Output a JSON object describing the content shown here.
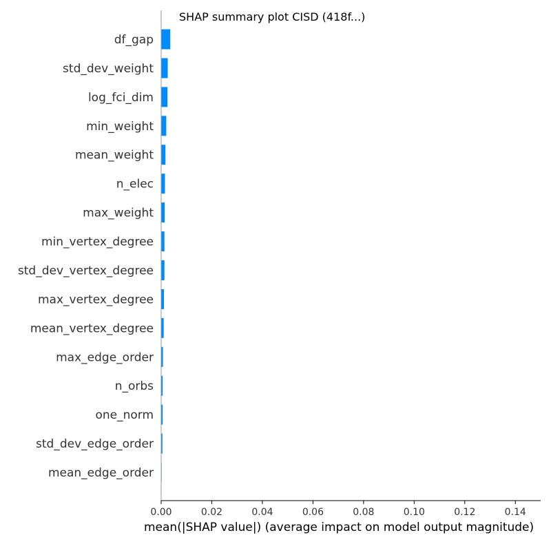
{
  "chart_data": {
    "type": "bar",
    "orientation": "horizontal",
    "title": "SHAP summary plot CISD (418f...)",
    "xlabel": "mean(|SHAP value|) (average impact on model output magnitude)",
    "ylabel": "",
    "xlim": [
      0,
      0.15
    ],
    "xticks": [
      "0.00",
      "0.02",
      "0.04",
      "0.06",
      "0.08",
      "0.10",
      "0.12",
      "0.14"
    ],
    "xtick_values": [
      0,
      0.02,
      0.04,
      0.06,
      0.08,
      0.1,
      0.12,
      0.14
    ],
    "bar_color": "#008bfb",
    "grid": false,
    "categories": [
      "df_gap",
      "std_dev_weight",
      "log_fci_dim",
      "min_weight",
      "mean_weight",
      "n_elec",
      "max_weight",
      "min_vertex_degree",
      "std_dev_vertex_degree",
      "max_vertex_degree",
      "mean_vertex_degree",
      "max_edge_order",
      "n_orbs",
      "one_norm",
      "std_dev_edge_order",
      "mean_edge_order"
    ],
    "values": [
      0.0036,
      0.0026,
      0.0025,
      0.002,
      0.0017,
      0.0015,
      0.0014,
      0.0013,
      0.0013,
      0.0011,
      0.001,
      0.0007,
      0.0006,
      0.0006,
      0.0005,
      0.0002
    ]
  }
}
